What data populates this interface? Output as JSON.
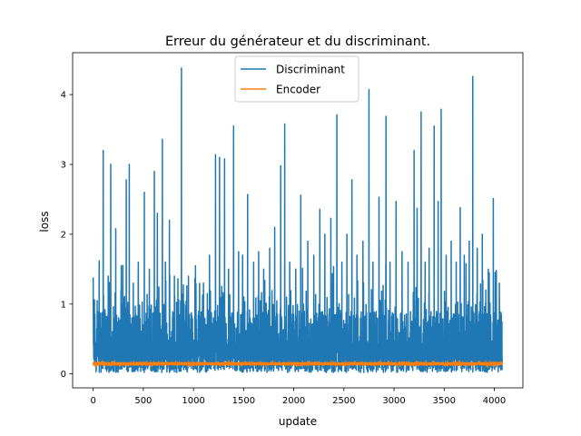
{
  "chart_data": {
    "type": "line",
    "title": "Erreur du générateur et du discriminant.",
    "xlabel": "update",
    "ylabel": "loss",
    "xlim": [
      -205,
      4285
    ],
    "ylim": [
      -0.2,
      4.6
    ],
    "xticks": [
      0,
      500,
      1000,
      1500,
      2000,
      2500,
      3000,
      3500,
      4000
    ],
    "xtick_labels": [
      "0",
      "500",
      "1000",
      "1500",
      "2000",
      "2500",
      "3000",
      "3500",
      "4000"
    ],
    "yticks": [
      0,
      1,
      2,
      3,
      4
    ],
    "ytick_labels": [
      "0",
      "1",
      "2",
      "3",
      "4"
    ],
    "grid": false,
    "legend_position": "top-center",
    "n_updates": 4080,
    "series": [
      {
        "name": "Discriminant",
        "color": "#1f77b4",
        "baseline": 0.25,
        "noise_range": [
          0.0,
          0.9
        ],
        "spikes": [
          {
            "x": 0,
            "y": 1.38
          },
          {
            "x": 40,
            "y": 1.05
          },
          {
            "x": 60,
            "y": 1.62
          },
          {
            "x": 100,
            "y": 3.2
          },
          {
            "x": 150,
            "y": 1.4
          },
          {
            "x": 175,
            "y": 3.0
          },
          {
            "x": 225,
            "y": 2.08
          },
          {
            "x": 280,
            "y": 1.55
          },
          {
            "x": 330,
            "y": 2.78
          },
          {
            "x": 360,
            "y": 3.0
          },
          {
            "x": 400,
            "y": 1.3
          },
          {
            "x": 450,
            "y": 1.6
          },
          {
            "x": 510,
            "y": 2.6
          },
          {
            "x": 560,
            "y": 1.5
          },
          {
            "x": 610,
            "y": 2.9
          },
          {
            "x": 640,
            "y": 2.3
          },
          {
            "x": 690,
            "y": 3.36
          },
          {
            "x": 720,
            "y": 1.6
          },
          {
            "x": 760,
            "y": 2.2
          },
          {
            "x": 810,
            "y": 1.4
          },
          {
            "x": 880,
            "y": 4.38
          },
          {
            "x": 950,
            "y": 1.4
          },
          {
            "x": 1020,
            "y": 1.55
          },
          {
            "x": 1100,
            "y": 1.3
          },
          {
            "x": 1160,
            "y": 1.7
          },
          {
            "x": 1220,
            "y": 3.14
          },
          {
            "x": 1260,
            "y": 3.1
          },
          {
            "x": 1310,
            "y": 3.08
          },
          {
            "x": 1350,
            "y": 1.5
          },
          {
            "x": 1400,
            "y": 3.55
          },
          {
            "x": 1450,
            "y": 1.75
          },
          {
            "x": 1490,
            "y": 1.7
          },
          {
            "x": 1540,
            "y": 2.57
          },
          {
            "x": 1600,
            "y": 1.6
          },
          {
            "x": 1650,
            "y": 1.75
          },
          {
            "x": 1700,
            "y": 1.5
          },
          {
            "x": 1760,
            "y": 1.8
          },
          {
            "x": 1810,
            "y": 2.1
          },
          {
            "x": 1870,
            "y": 2.98
          },
          {
            "x": 1910,
            "y": 3.58
          },
          {
            "x": 1960,
            "y": 1.6
          },
          {
            "x": 2020,
            "y": 1.5
          },
          {
            "x": 2070,
            "y": 2.56
          },
          {
            "x": 2140,
            "y": 1.9
          },
          {
            "x": 2200,
            "y": 1.7
          },
          {
            "x": 2260,
            "y": 2.36
          },
          {
            "x": 2310,
            "y": 2.0
          },
          {
            "x": 2370,
            "y": 2.23
          },
          {
            "x": 2430,
            "y": 3.71
          },
          {
            "x": 2480,
            "y": 1.6
          },
          {
            "x": 2530,
            "y": 2.0
          },
          {
            "x": 2580,
            "y": 2.78
          },
          {
            "x": 2630,
            "y": 1.7
          },
          {
            "x": 2690,
            "y": 1.9
          },
          {
            "x": 2750,
            "y": 4.07
          },
          {
            "x": 2790,
            "y": 1.6
          },
          {
            "x": 2850,
            "y": 2.53
          },
          {
            "x": 2920,
            "y": 3.69
          },
          {
            "x": 2960,
            "y": 1.6
          },
          {
            "x": 3020,
            "y": 2.47
          },
          {
            "x": 3080,
            "y": 1.75
          },
          {
            "x": 3140,
            "y": 1.6
          },
          {
            "x": 3200,
            "y": 3.2
          },
          {
            "x": 3230,
            "y": 2.37
          },
          {
            "x": 3270,
            "y": 3.75
          },
          {
            "x": 3310,
            "y": 1.6
          },
          {
            "x": 3350,
            "y": 1.8
          },
          {
            "x": 3400,
            "y": 3.55
          },
          {
            "x": 3440,
            "y": 2.47
          },
          {
            "x": 3470,
            "y": 3.79
          },
          {
            "x": 3520,
            "y": 1.7
          },
          {
            "x": 3570,
            "y": 1.9
          },
          {
            "x": 3620,
            "y": 1.6
          },
          {
            "x": 3660,
            "y": 2.38
          },
          {
            "x": 3700,
            "y": 1.7
          },
          {
            "x": 3750,
            "y": 1.9
          },
          {
            "x": 3785,
            "y": 4.26
          },
          {
            "x": 3830,
            "y": 1.8
          },
          {
            "x": 3880,
            "y": 2.0
          },
          {
            "x": 3940,
            "y": 1.5
          },
          {
            "x": 3990,
            "y": 2.51
          },
          {
            "x": 4020,
            "y": 1.48
          },
          {
            "x": 4050,
            "y": 1.3
          },
          {
            "x": 4070,
            "y": 0.85
          }
        ]
      },
      {
        "name": "Encoder",
        "color": "#ff7f0e",
        "baseline": 0.14,
        "noise_range": [
          0.12,
          0.17
        ]
      }
    ]
  }
}
